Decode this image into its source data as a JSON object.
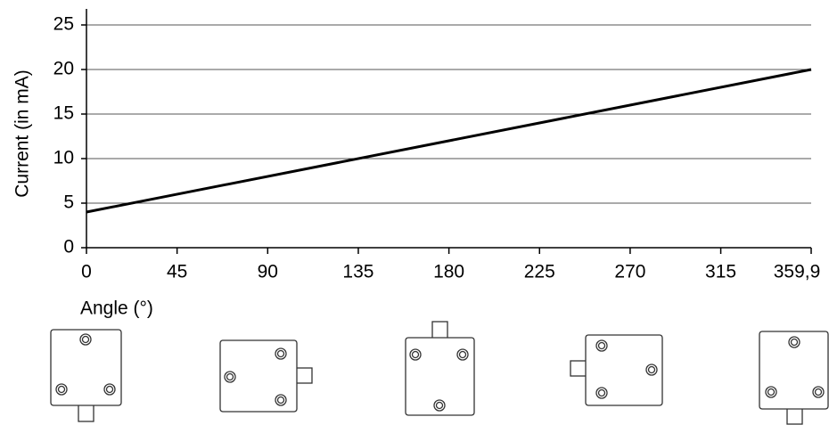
{
  "chart_data": {
    "type": "line",
    "x_label": "Angle (°)",
    "y_label": "Current (in mA)",
    "x": [
      0,
      359.9
    ],
    "series": [
      {
        "name": "Current",
        "color": "#000000",
        "values": [
          4,
          20
        ]
      }
    ],
    "xlim": [
      0,
      359.9
    ],
    "ylim": [
      0,
      27
    ],
    "xticks": [
      0,
      45,
      90,
      135,
      180,
      225,
      270,
      315,
      {
        "value": 359.9,
        "label": "359,9"
      }
    ],
    "yticks": [
      0,
      5,
      10,
      15,
      20,
      25
    ],
    "grid": true
  }
}
